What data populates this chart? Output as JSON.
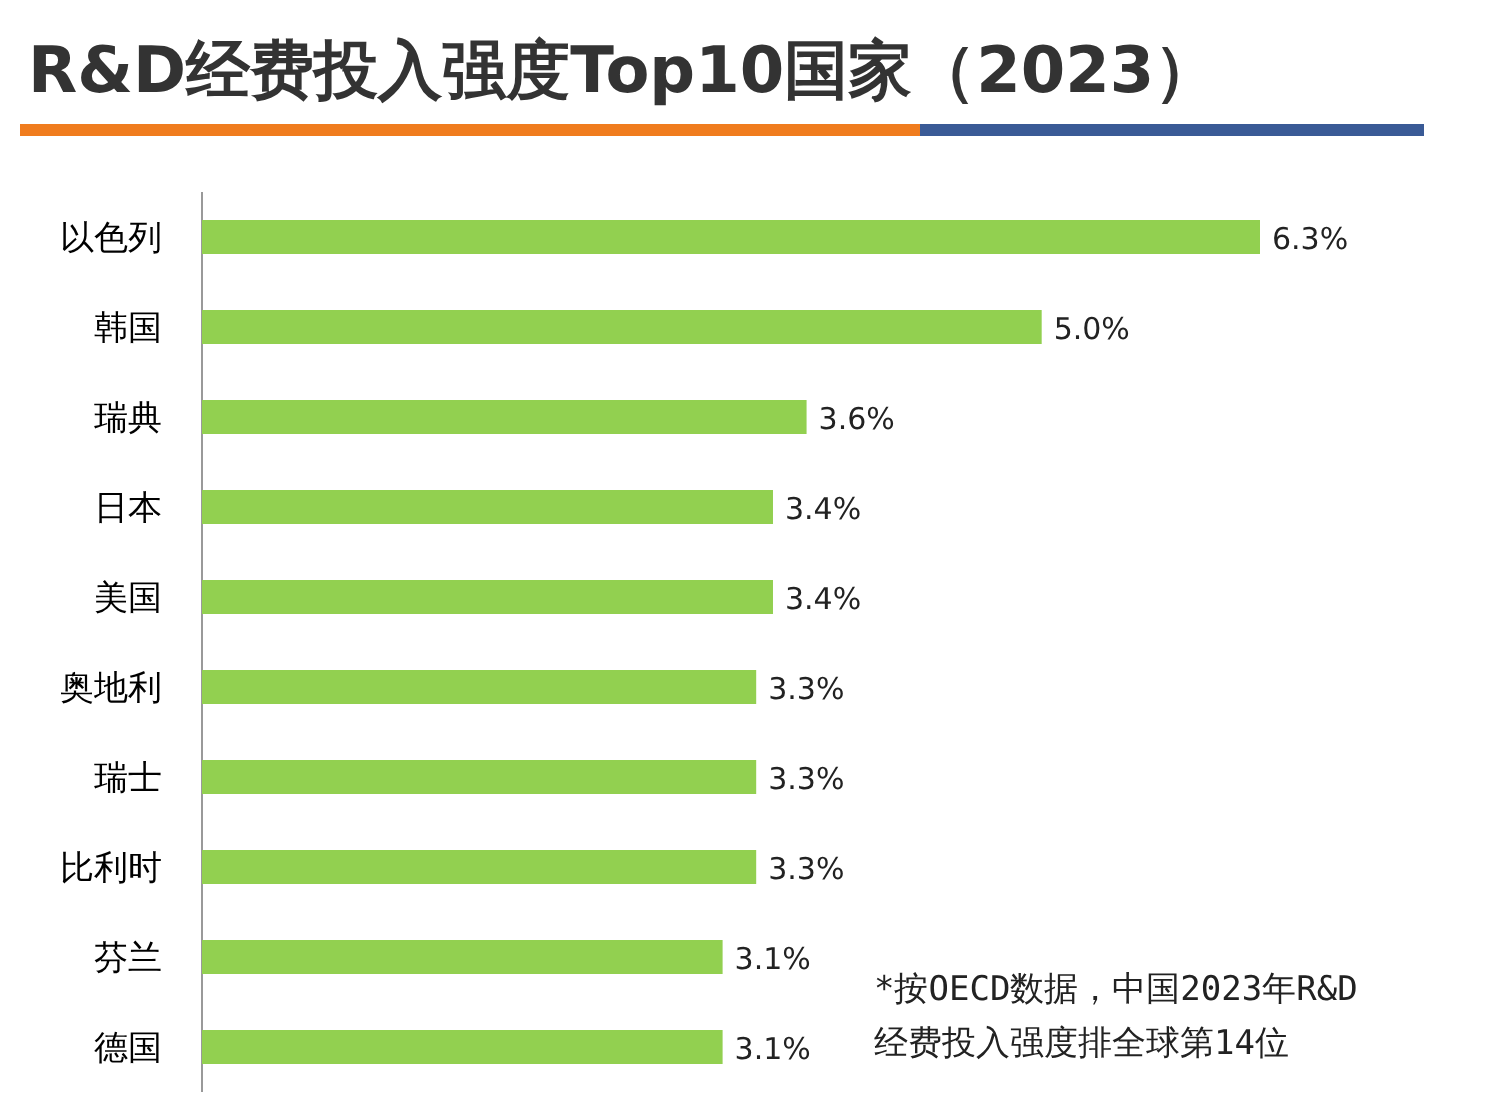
{
  "chart_data": {
    "type": "bar",
    "orientation": "horizontal",
    "title": "R&D经费投入强度Top10国家（2023）",
    "categories": [
      "以色列",
      "韩国",
      "瑞典",
      "日本",
      "美国",
      "奥地利",
      "瑞士",
      "比利时",
      "芬兰",
      "德国"
    ],
    "values": [
      6.3,
      5.0,
      3.6,
      3.4,
      3.4,
      3.3,
      3.3,
      3.3,
      3.1,
      3.1
    ],
    "value_labels": [
      "6.3%",
      "5.0%",
      "3.6%",
      "3.4%",
      "3.4%",
      "3.3%",
      "3.3%",
      "3.3%",
      "3.1%",
      "3.1%"
    ],
    "color": "#92d050",
    "annotations": [
      "*按OECD数据，中国2023年R&D",
      "经费投入强度排全球第14位"
    ]
  }
}
